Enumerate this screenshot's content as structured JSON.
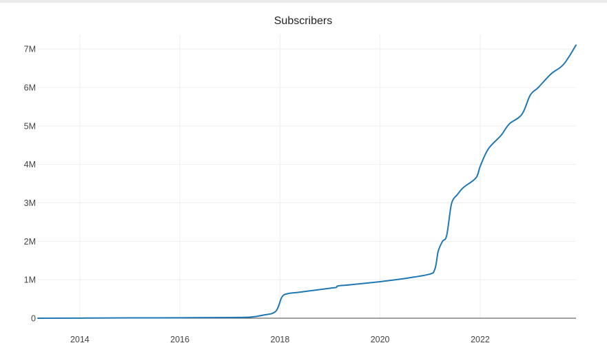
{
  "chart_data": {
    "type": "line",
    "title": "Subscribers",
    "xlabel": "",
    "ylabel": "",
    "color": "#1f77b4",
    "grid": true,
    "legend": "none",
    "xlim": [
      "2013-03-01",
      "2023-12-01"
    ],
    "ylim": [
      0,
      7200000
    ],
    "x_ticks": [
      {
        "value": "2014-01-01",
        "label": "2014"
      },
      {
        "value": "2016-01-01",
        "label": "2016"
      },
      {
        "value": "2018-01-01",
        "label": "2018"
      },
      {
        "value": "2020-01-01",
        "label": "2020"
      },
      {
        "value": "2022-01-01",
        "label": "2022"
      }
    ],
    "y_ticks": [
      {
        "value": 0,
        "label": "0"
      },
      {
        "value": 1000000,
        "label": "1M"
      },
      {
        "value": 2000000,
        "label": "2M"
      },
      {
        "value": 3000000,
        "label": "3M"
      },
      {
        "value": 4000000,
        "label": "4M"
      },
      {
        "value": 5000000,
        "label": "5M"
      },
      {
        "value": 6000000,
        "label": "6M"
      },
      {
        "value": 7000000,
        "label": "7M"
      }
    ],
    "series": [
      {
        "x": [
          "2013-03-01",
          "2014-01-01",
          "2015-01-01",
          "2016-01-01",
          "2017-01-01",
          "2017-06-01",
          "2017-09-01",
          "2017-12-01",
          "2018-01-15",
          "2018-03-01",
          "2018-06-01",
          "2019-01-01",
          "2019-02-15",
          "2019-03-01",
          "2019-06-01",
          "2020-01-01",
          "2020-04-01",
          "2020-08-01",
          "2021-01-01",
          "2021-02-01",
          "2021-02-15",
          "2021-03-01",
          "2021-04-01",
          "2021-05-01",
          "2021-06-01",
          "2021-06-20",
          "2021-07-15",
          "2021-09-01",
          "2021-12-01",
          "2022-01-01",
          "2022-03-01",
          "2022-06-01",
          "2022-08-01",
          "2022-11-01",
          "2023-01-01",
          "2023-03-01",
          "2023-06-01",
          "2023-09-01",
          "2023-12-01"
        ],
        "values": [
          0,
          3000,
          8000,
          12000,
          18000,
          30000,
          80000,
          180000,
          550000,
          640000,
          680000,
          780000,
          800000,
          840000,
          870000,
          950000,
          990000,
          1050000,
          1150000,
          1250000,
          1450000,
          1750000,
          2000000,
          2150000,
          2900000,
          3100000,
          3200000,
          3400000,
          3650000,
          3950000,
          4400000,
          4750000,
          5050000,
          5300000,
          5800000,
          6000000,
          6350000,
          6600000,
          7100000
        ]
      }
    ]
  }
}
